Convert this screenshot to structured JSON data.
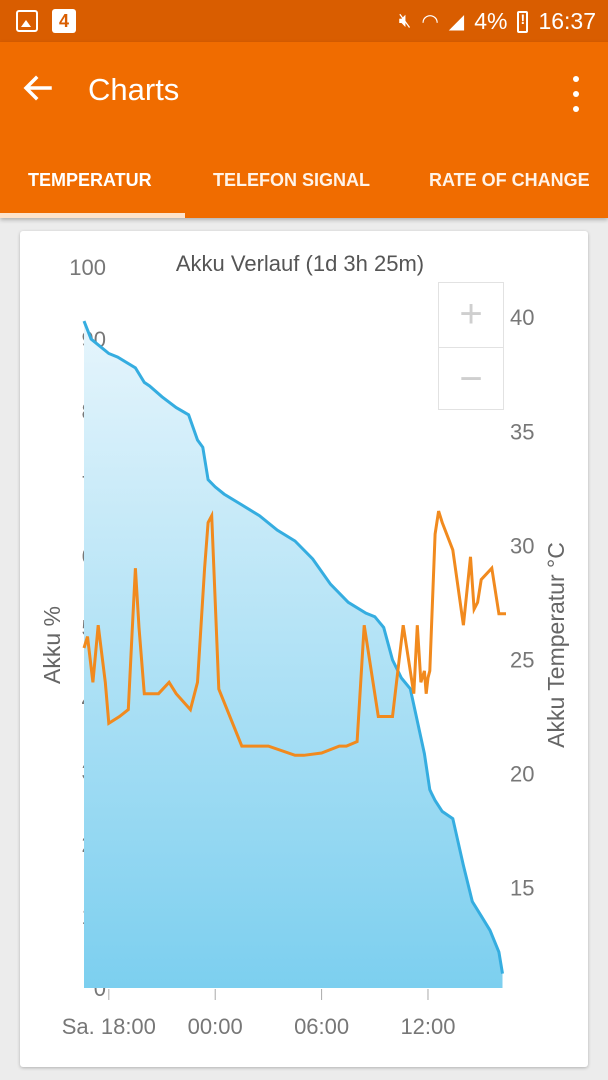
{
  "status_bar": {
    "badge": "4",
    "battery": "4%",
    "time": "16:37"
  },
  "app_bar": {
    "title": "Charts"
  },
  "tabs": [
    {
      "label": "TEMPERATUR",
      "active": true
    },
    {
      "label": "TELEFON SIGNAL",
      "active": false
    },
    {
      "label": "RATE OF CHANGE",
      "active": false
    }
  ],
  "zoom": {
    "plus": "+",
    "minus": "−"
  },
  "colors": {
    "status_bar": "#d95d00",
    "app_bar": "#f06c00",
    "battery_line": "#35ade0",
    "temperature_line": "#f18a1e"
  },
  "chart_data": {
    "type": "line",
    "title": "Akku Verlauf (1d 3h 25m)",
    "ylabel": "Akku %",
    "y2label": "Akku Temperatur °C",
    "ylim": [
      0,
      100
    ],
    "y2lim": [
      10.6,
      42.2
    ],
    "yticks": [
      100,
      90,
      80,
      70,
      60,
      50,
      40,
      30,
      20,
      10,
      0
    ],
    "y2ticks": [
      40,
      35,
      30,
      25,
      20,
      15
    ],
    "x_tick_labels": [
      "Sa. 18:00",
      "00:00",
      "06:00",
      "12:00"
    ],
    "x_tick_hours": [
      0,
      6,
      12,
      18
    ],
    "xlim_hours": [
      -1.4,
      22.4
    ],
    "series": [
      {
        "name": "Akku %",
        "axis": "left",
        "x": [
          -1.4,
          -1.0,
          -0.5,
          0.0,
          0.5,
          1.5,
          2.0,
          2.3,
          3.0,
          3.8,
          4.5,
          5.0,
          5.3,
          5.6,
          6.0,
          6.5,
          7.5,
          8.5,
          9.5,
          10.5,
          11.5,
          12.5,
          13.5,
          14.5,
          15.0,
          15.5,
          16.0,
          16.5,
          17.0,
          17.8,
          18.1,
          18.2,
          18.4,
          18.8,
          19.4,
          20.0,
          20.5,
          21.0,
          21.5,
          22.0,
          22.2
        ],
        "values": [
          92.5,
          90,
          89,
          88,
          87.5,
          86,
          84,
          83.5,
          82,
          80.5,
          79.5,
          76,
          75,
          70.5,
          69.5,
          68.5,
          67,
          65.5,
          63.5,
          62,
          59.5,
          56,
          53.5,
          52,
          51.5,
          50,
          45.5,
          43,
          41.5,
          32.5,
          27.5,
          27,
          26,
          24.5,
          23.5,
          17,
          12,
          10,
          8,
          5,
          2
        ]
      },
      {
        "name": "Akku Temperatur °C",
        "axis": "right",
        "x": [
          -1.4,
          -1.2,
          -0.9,
          -0.6,
          -0.2,
          0.0,
          0.6,
          1.1,
          1.3,
          1.5,
          1.7,
          2.0,
          2.8,
          3.4,
          3.8,
          4.6,
          5.0,
          5.4,
          5.6,
          5.8,
          6.2,
          7.5,
          9.0,
          10.5,
          11.0,
          12.0,
          13.0,
          13.4,
          14.0,
          14.4,
          15.2,
          16.0,
          16.6,
          17.2,
          17.4,
          17.6,
          17.8,
          17.9,
          18.0,
          18.1,
          18.4,
          18.6,
          18.8,
          19.4,
          20.0,
          20.4,
          20.6,
          20.8,
          21.0,
          21.6,
          22.0,
          22.4
        ],
        "values": [
          25.5,
          26,
          24,
          26.5,
          24,
          22.2,
          22.5,
          22.8,
          26,
          29,
          26.4,
          23.5,
          23.5,
          24,
          23.5,
          22.8,
          24,
          29,
          31,
          31.3,
          23.7,
          21.2,
          21.2,
          20.8,
          20.8,
          20.9,
          21.2,
          21.2,
          21.4,
          26.5,
          22.5,
          22.5,
          26.5,
          23.5,
          26.5,
          24.0,
          24.5,
          23.5,
          24.2,
          24.5,
          30.5,
          31.5,
          31.0,
          29.8,
          26.5,
          29.5,
          27.2,
          27.5,
          28.5,
          29.0,
          27.0,
          27.0
        ]
      }
    ]
  }
}
